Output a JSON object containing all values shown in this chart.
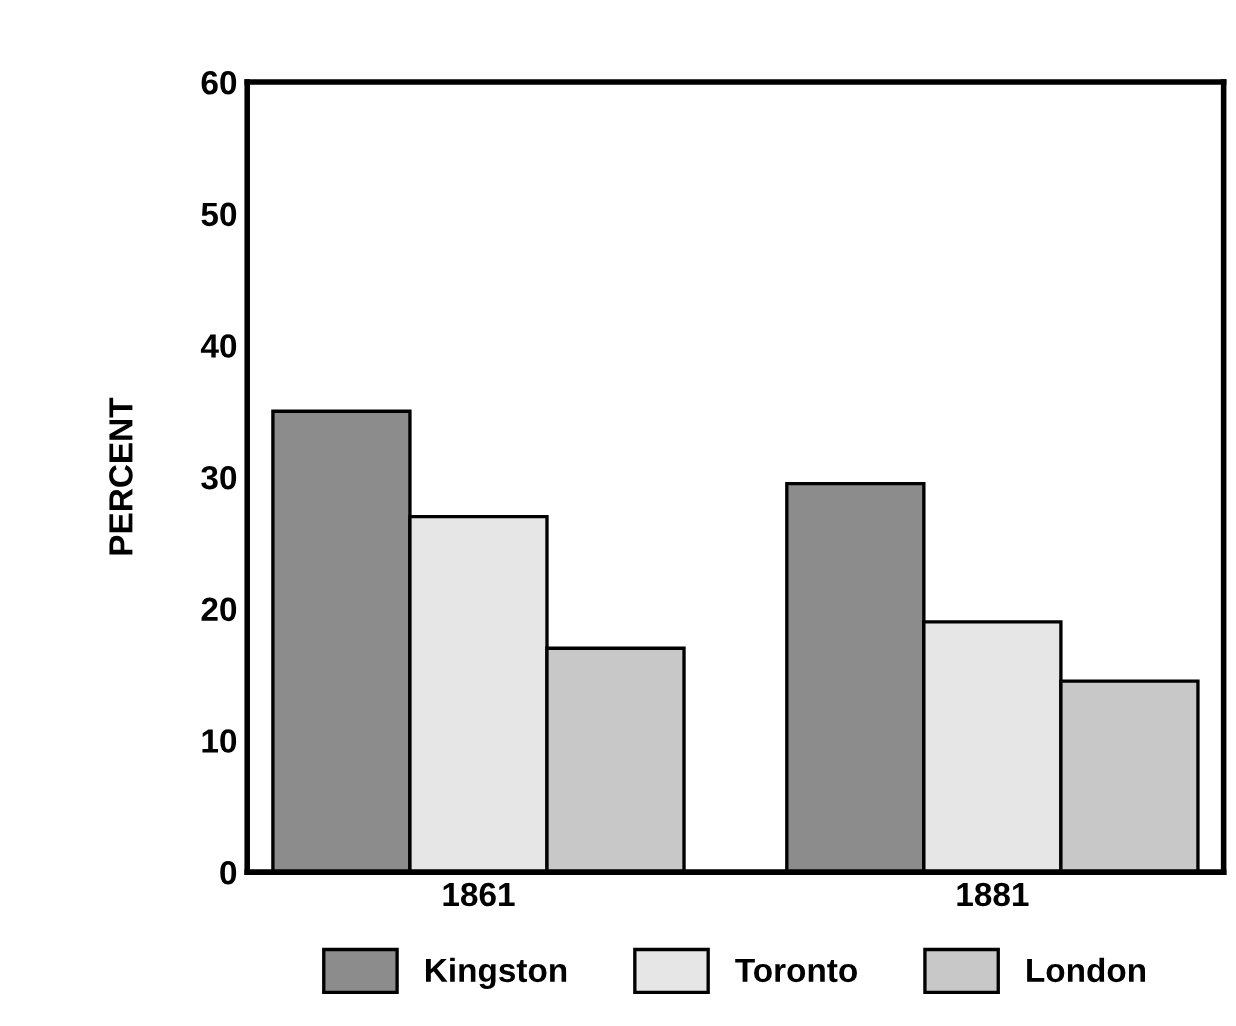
{
  "chart_data": {
    "type": "bar",
    "ylabel": "PERCENT",
    "categories": [
      "1861",
      "1881"
    ],
    "series": [
      {
        "name": "Kingston",
        "color": "#8c8c8c",
        "values": [
          35,
          29.5
        ]
      },
      {
        "name": "Toronto",
        "color": "#e6e6e6",
        "values": [
          27,
          19
        ]
      },
      {
        "name": "London",
        "color": "#c8c8c8",
        "values": [
          17,
          14.5
        ]
      }
    ],
    "ylim": [
      0,
      60
    ],
    "yticks": [
      0,
      10,
      20,
      30,
      40,
      50,
      60
    ],
    "grid": false,
    "legend": "bottom"
  }
}
